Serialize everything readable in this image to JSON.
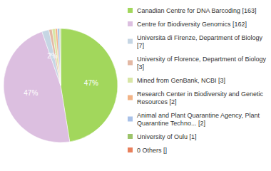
{
  "chart_data": {
    "type": "pie",
    "categories": [
      "Canadian Centre for DNA Barcoding [163]",
      "Centre for Biodiversity Genomics [162]",
      "Universita di Firenze, Department of Biology [7]",
      "University of Florence, Department of Biology [3]",
      "Mined from GenBank, NCBI [3]",
      "Research Center in Biodiversity and Genetic Resources [2]",
      "Animal and Plant Quarantine Agency, Plant Quarantine Techno... [2]",
      "University of Oulu [1]",
      "0 Others []"
    ],
    "values": [
      47.4,
      47.2,
      2.0,
      0.9,
      0.9,
      0.6,
      0.6,
      0.3,
      0
    ],
    "value_labels": [
      "47%",
      "47%",
      "2%",
      null,
      null,
      null,
      null,
      null,
      null
    ],
    "data_labels": true,
    "legend": "right",
    "colors": [
      "#a2d75c",
      "#dcbfe0",
      "#c6d6e4",
      "#e3b8a4",
      "#d8e6a6",
      "#f2b386",
      "#a8c1e8",
      "#9cc46a",
      "#e8805c"
    ]
  }
}
